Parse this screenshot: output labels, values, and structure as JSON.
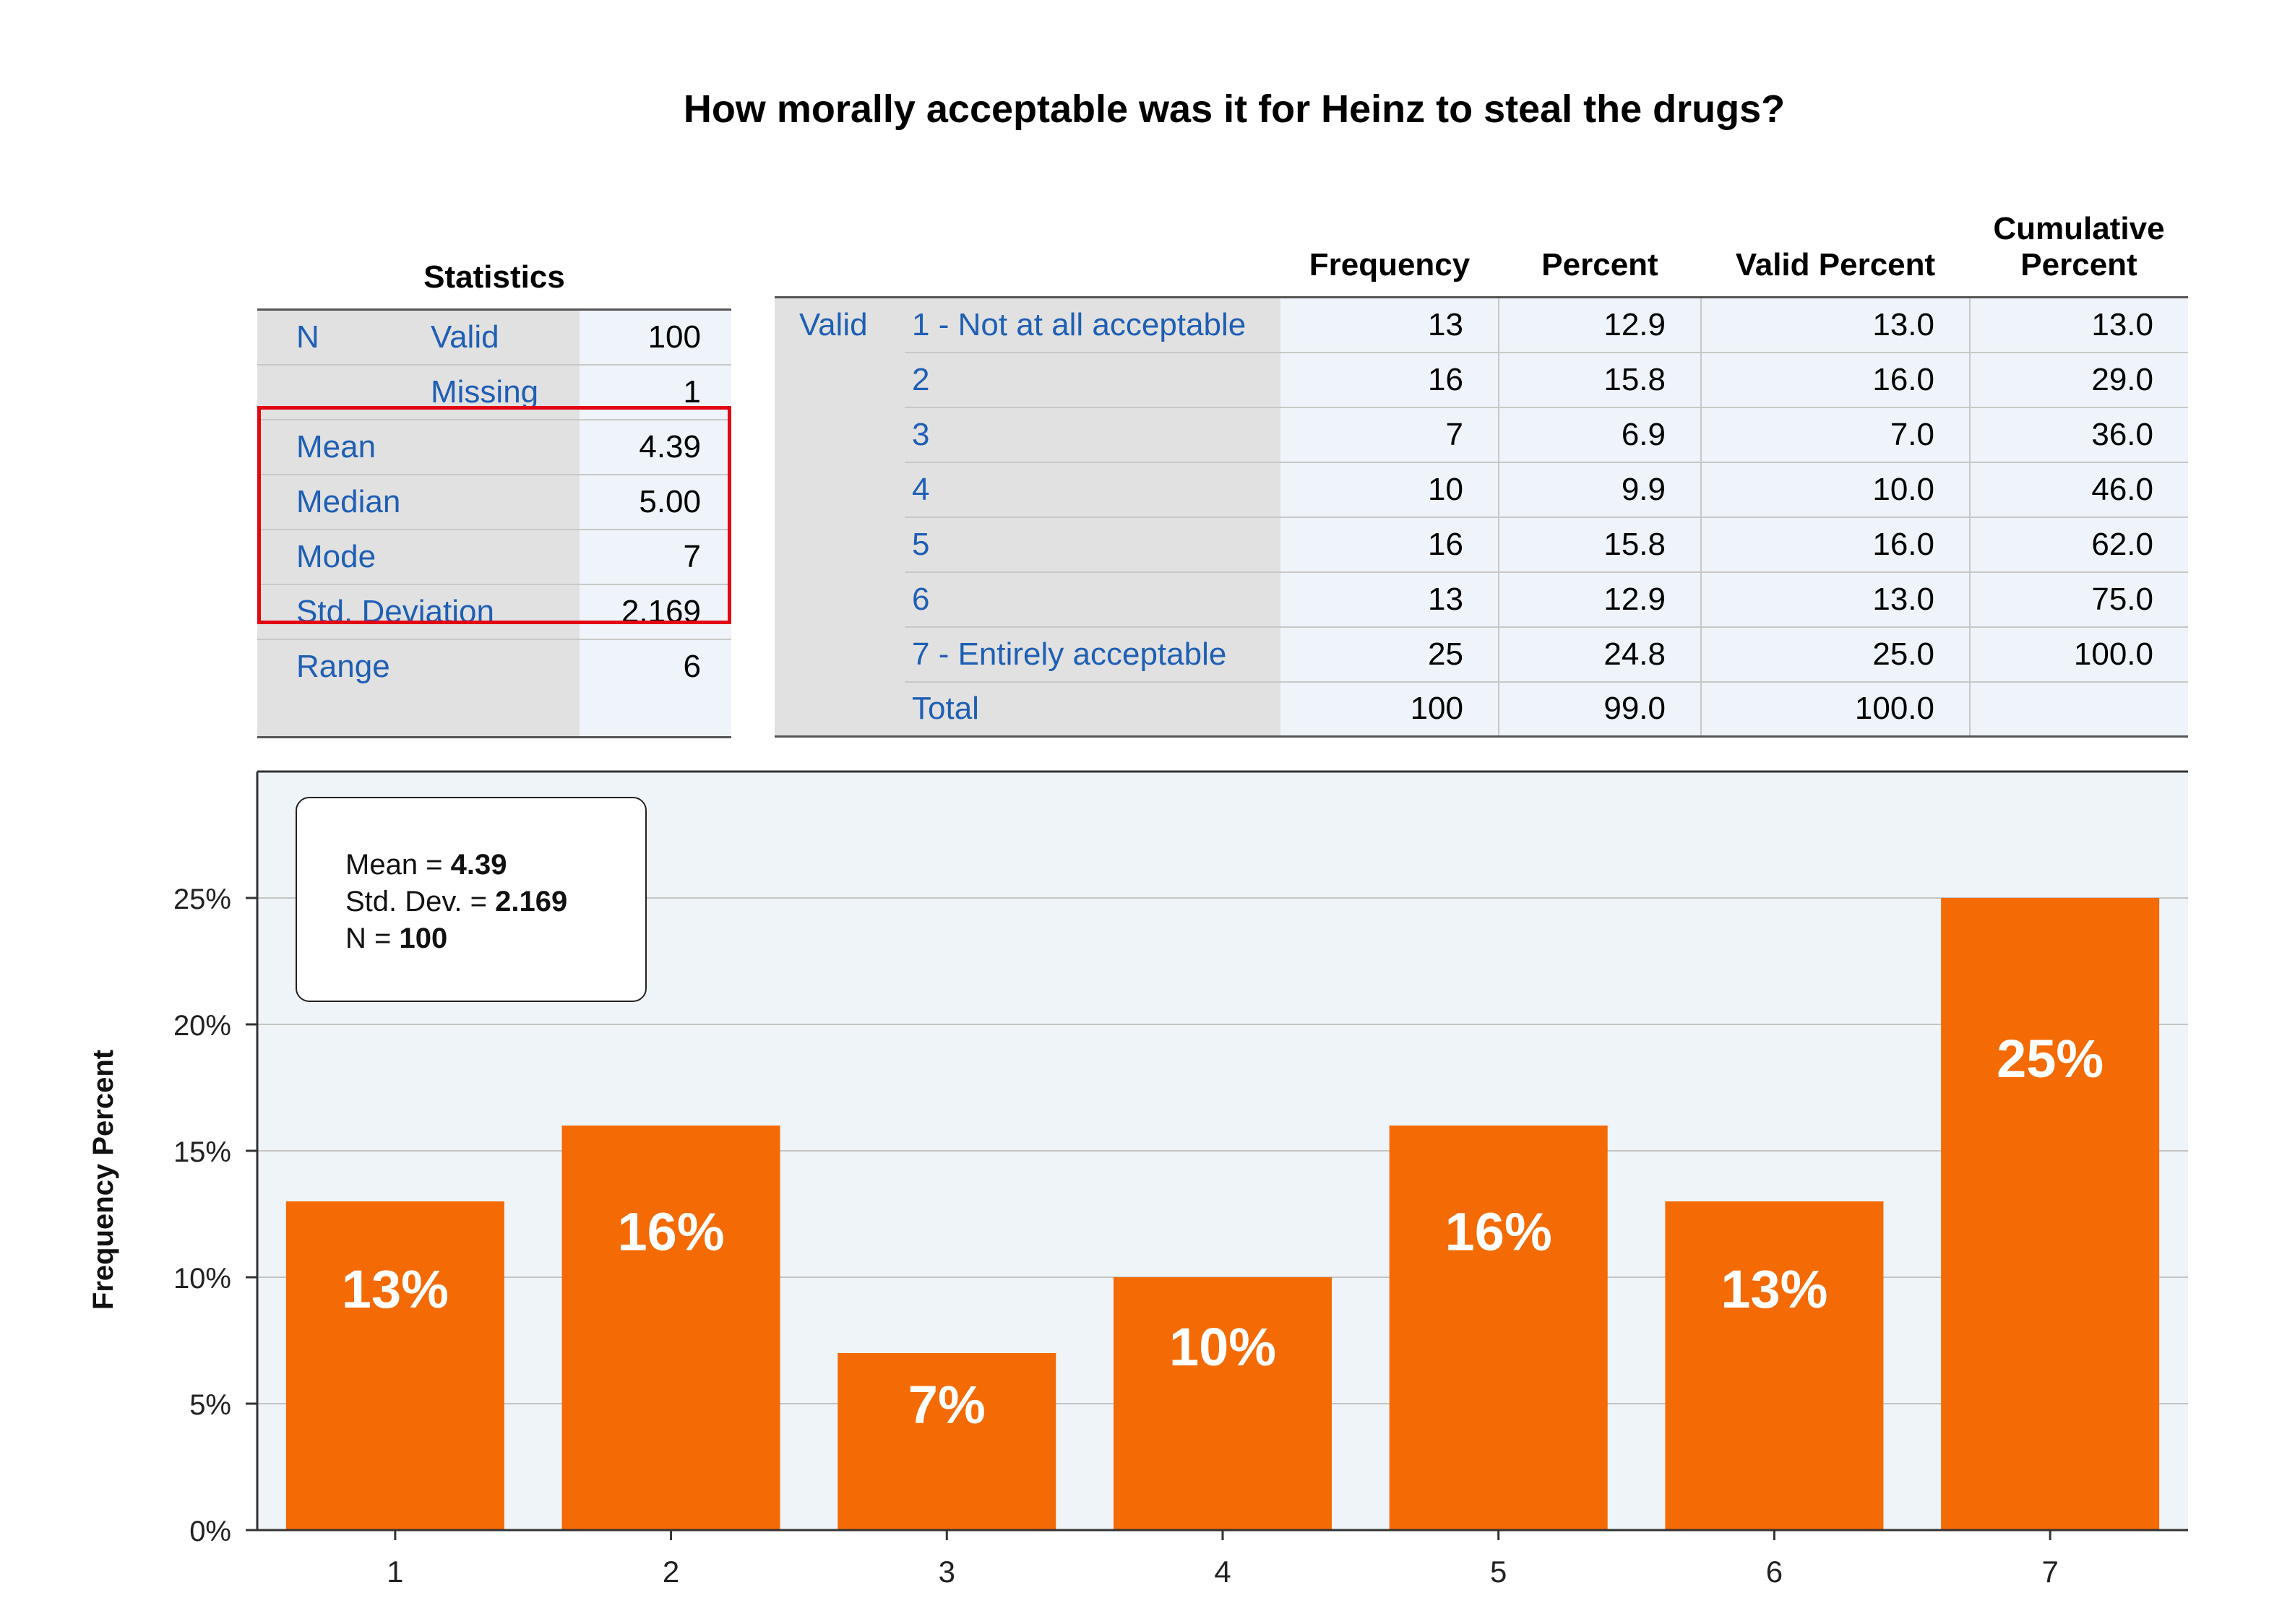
{
  "title": "How morally acceptable was it for Heinz to steal the drugs?",
  "statistics": {
    "header": "Statistics",
    "n_label": "N",
    "rows": [
      {
        "label": "Valid",
        "value": "100"
      },
      {
        "label": "Missing",
        "value": "1"
      },
      {
        "label": "Mean",
        "value": "4.39"
      },
      {
        "label": "Median",
        "value": "5.00"
      },
      {
        "label": "Mode",
        "value": "7"
      },
      {
        "label": "Std. Deviation",
        "value": "2.169"
      },
      {
        "label": "Range",
        "value": "6"
      }
    ]
  },
  "frequency_table": {
    "headers": {
      "frequency": "Frequency",
      "percent": "Percent",
      "valid_percent": "Valid Percent",
      "cumulative_1": "Cumulative",
      "cumulative_2": "Percent"
    },
    "group_label": "Valid",
    "rows": [
      {
        "label": "1 - Not at all acceptable",
        "frequency": "13",
        "percent": "12.9",
        "valid_percent": "13.0",
        "cumulative": "13.0"
      },
      {
        "label": "2",
        "frequency": "16",
        "percent": "15.8",
        "valid_percent": "16.0",
        "cumulative": "29.0"
      },
      {
        "label": "3",
        "frequency": "7",
        "percent": "6.9",
        "valid_percent": "7.0",
        "cumulative": "36.0"
      },
      {
        "label": "4",
        "frequency": "10",
        "percent": "9.9",
        "valid_percent": "10.0",
        "cumulative": "46.0"
      },
      {
        "label": "5",
        "frequency": "16",
        "percent": "15.8",
        "valid_percent": "16.0",
        "cumulative": "62.0"
      },
      {
        "label": "6",
        "frequency": "13",
        "percent": "12.9",
        "valid_percent": "13.0",
        "cumulative": "75.0"
      },
      {
        "label": "7 - Entirely acceptable",
        "frequency": "25",
        "percent": "24.8",
        "valid_percent": "25.0",
        "cumulative": "100.0"
      },
      {
        "label": "Total",
        "frequency": "100",
        "percent": "99.0",
        "valid_percent": "100.0",
        "cumulative": ""
      }
    ]
  },
  "chart_data": {
    "type": "bar",
    "categories": [
      "1",
      "2",
      "3",
      "4",
      "5",
      "6",
      "7"
    ],
    "values": [
      13,
      16,
      7,
      10,
      16,
      13,
      25
    ],
    "data_labels": [
      "13%",
      "16%",
      "7%",
      "10%",
      "16%",
      "13%",
      "25%"
    ],
    "ylabel": "Frequency Percent",
    "xlabel": "",
    "ylim": [
      0,
      30
    ],
    "yticks": [
      0,
      5,
      10,
      15,
      20,
      25
    ],
    "ytick_labels": [
      "0%",
      "5%",
      "10%",
      "15%",
      "20%",
      "25%"
    ],
    "grid": true,
    "bar_color": "#f46a04",
    "plot_background": "#eff4f8",
    "legend_box": {
      "lines": [
        {
          "label": "Mean = ",
          "value": "4.39"
        },
        {
          "label": "Std. Dev. = ",
          "value": "2.169"
        },
        {
          "label": "N = ",
          "value": "100"
        }
      ],
      "placement": "top-left"
    }
  }
}
